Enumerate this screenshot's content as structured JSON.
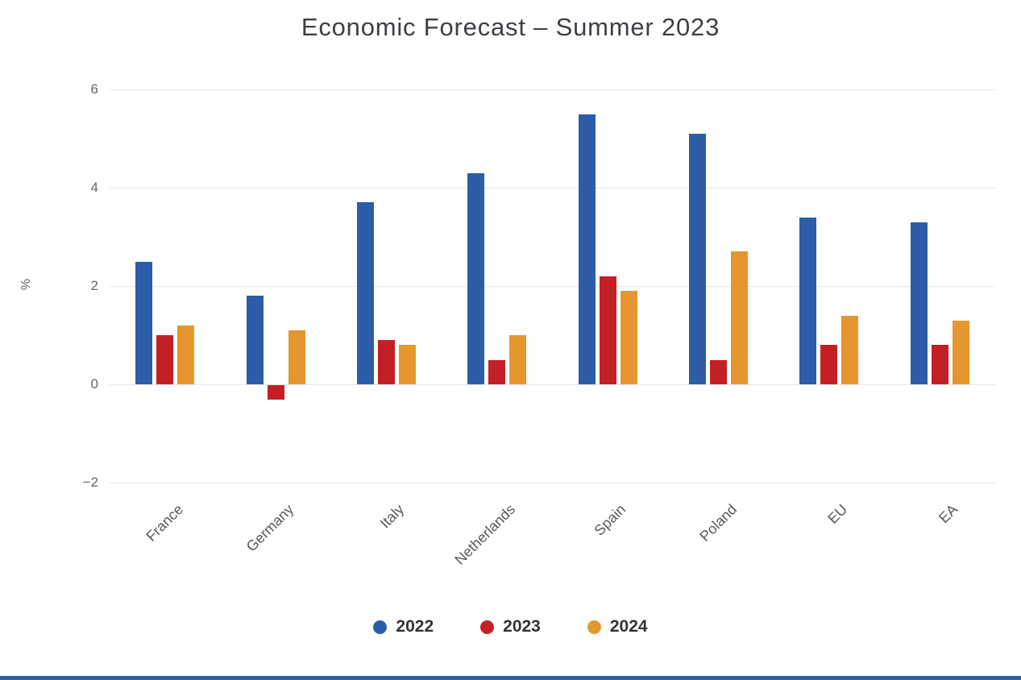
{
  "title": "Economic Forecast – Summer 2023",
  "chart_data": {
    "type": "bar",
    "title": "Economic Forecast – Summer 2023",
    "categories": [
      "France",
      "Germany",
      "Italy",
      "Netherlands",
      "Spain",
      "Poland",
      "EU",
      "EA"
    ],
    "series": [
      {
        "name": "2022",
        "color": "#2d5da9",
        "values": [
          2.5,
          1.8,
          3.7,
          4.3,
          5.5,
          5.1,
          3.4,
          3.3
        ]
      },
      {
        "name": "2023",
        "color": "#c32026",
        "values": [
          1.0,
          -0.3,
          0.9,
          0.5,
          2.2,
          0.5,
          0.8,
          0.8
        ]
      },
      {
        "name": "2024",
        "color": "#e6962e",
        "values": [
          1.2,
          1.1,
          0.8,
          1.0,
          1.9,
          2.7,
          1.4,
          1.3
        ]
      }
    ],
    "xlabel": "",
    "ylabel": "%",
    "ylim": [
      -2.6,
      6.4
    ],
    "yticks": [
      6,
      4,
      2,
      0,
      -2
    ],
    "ytick_labels": [
      "6",
      "4",
      "2",
      "0",
      "−2"
    ],
    "grid": true,
    "legend_position": "bottom"
  },
  "page": {
    "bottom_bar_color": "#2d5da9",
    "grid_color": "#e6e6e6",
    "background": "#ffffff"
  }
}
